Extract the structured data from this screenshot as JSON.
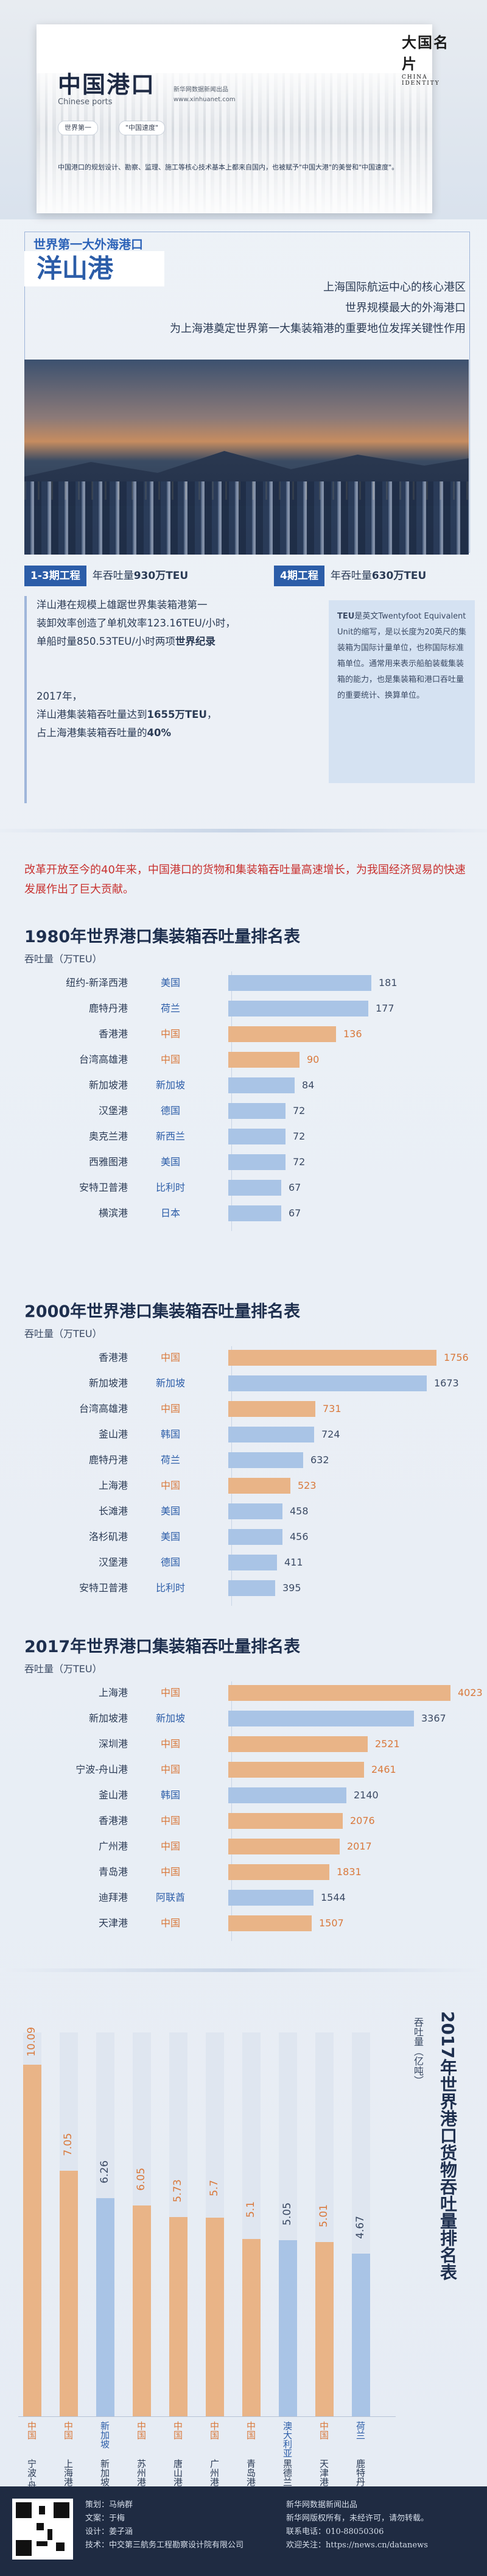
{
  "header": {
    "title": "中国港口",
    "subtitle": "Chinese ports",
    "note_line1": "新华网数据新闻出品",
    "note_line2": "www.xinhuanet.com",
    "pill_left": "世界第一",
    "pill_right": "\"中国速度\"",
    "seal_text": "大国名片",
    "seal_sub": "CHINA IDENTITY",
    "description": "中国港口的规划设计、勘察、监理、施工等核心技术基本上都来自国内，也被赋予\"中国大港\"的美誉和\"中国速度\"。"
  },
  "section1": {
    "tag": "世界第一大外海港口",
    "title": "洋山港",
    "desc_lines": [
      "上海国际航运中心的核心港区",
      "世界规模最大的外海港口",
      "为上海港奠定世界第一大集装箱港的重要地位发挥关键性作用"
    ],
    "projects": [
      {
        "tag": "1-3期工程",
        "label": "年吞吐量",
        "value": "930万TEU"
      },
      {
        "tag": "4期工程",
        "label": "年吞吐量",
        "value": "630万TEU"
      }
    ],
    "info_p1": [
      "洋山港在规模上雄踞世界集装箱港第一",
      "装卸效率创造了单机效率123.16TEU/小时，",
      "单船时量850.53TEU/小时两项"
    ],
    "info_p1_bold": "世界纪录",
    "info_p2_lines": [
      "2017年，",
      "洋山港集装箱吞吐量达到"
    ],
    "info_p2_value": "1655万TEU",
    "info_p2_tail_pre": "，",
    "info_p2_line3": "占上海港集装箱吞吐量的",
    "info_p2_pct": "40%",
    "teu_title": "TEU",
    "teu_text": "是英文Twentyfoot Equivalent Unit的缩写，是以长度为20英尺的集装箱为国际计量单位，也称国际标准箱单位。通常用来表示船舶装载集装箱的能力，也是集装箱和港口吞吐量的重要统计、换算单位。"
  },
  "intro": "改革开放至今的40年来，中国港口的货物和集装箱吞吐量高速增长，为我国经济贸易的快速发展作出了巨大贡献。",
  "chart_1980": {
    "title": "1980年世界港口集装箱吞吐量排名表",
    "unit": "吞吐量（万TEU）",
    "rows": [
      {
        "port": "纽约-新泽西港",
        "country": "美国",
        "value": 181,
        "china": false
      },
      {
        "port": "鹿特丹港",
        "country": "荷兰",
        "value": 177,
        "china": false
      },
      {
        "port": "香港港",
        "country": "中国",
        "value": 136,
        "china": true
      },
      {
        "port": "台湾高雄港",
        "country": "中国",
        "value": 90,
        "china": true
      },
      {
        "port": "新加坡港",
        "country": "新加坡",
        "value": 84,
        "china": false
      },
      {
        "port": "汉堡港",
        "country": "德国",
        "value": 72,
        "china": false
      },
      {
        "port": "奥克兰港",
        "country": "新西兰",
        "value": 72,
        "china": false
      },
      {
        "port": "西雅图港",
        "country": "美国",
        "value": 72,
        "china": false
      },
      {
        "port": "安特卫普港",
        "country": "比利时",
        "value": 67,
        "china": false
      },
      {
        "port": "横滨港",
        "country": "日本",
        "value": 67,
        "china": false
      }
    ]
  },
  "chart_2000": {
    "title": "2000年世界港口集装箱吞吐量排名表",
    "unit": "吞吐量（万TEU）",
    "rows": [
      {
        "port": "香港港",
        "country": "中国",
        "value": 1756,
        "china": true
      },
      {
        "port": "新加坡港",
        "country": "新加坡",
        "value": 1673,
        "china": false
      },
      {
        "port": "台湾高雄港",
        "country": "中国",
        "value": 731,
        "china": true
      },
      {
        "port": "釜山港",
        "country": "韩国",
        "value": 724,
        "china": false
      },
      {
        "port": "鹿特丹港",
        "country": "荷兰",
        "value": 632,
        "china": false
      },
      {
        "port": "上海港",
        "country": "中国",
        "value": 523,
        "china": true
      },
      {
        "port": "长滩港",
        "country": "美国",
        "value": 458,
        "china": false
      },
      {
        "port": "洛杉矶港",
        "country": "美国",
        "value": 456,
        "china": false
      },
      {
        "port": "汉堡港",
        "country": "德国",
        "value": 411,
        "china": false
      },
      {
        "port": "安特卫普港",
        "country": "比利时",
        "value": 395,
        "china": false
      }
    ]
  },
  "chart_2017": {
    "title": "2017年世界港口集装箱吞吐量排名表",
    "unit": "吞吐量（万TEU）",
    "rows": [
      {
        "port": "上海港",
        "country": "中国",
        "value": 4023,
        "china": true
      },
      {
        "port": "新加坡港",
        "country": "新加坡",
        "value": 3367,
        "china": false
      },
      {
        "port": "深圳港",
        "country": "中国",
        "value": 2521,
        "china": true
      },
      {
        "port": "宁波-舟山港",
        "country": "中国",
        "value": 2461,
        "china": true
      },
      {
        "port": "釜山港",
        "country": "韩国",
        "value": 2140,
        "china": false
      },
      {
        "port": "香港港",
        "country": "中国",
        "value": 2076,
        "china": true
      },
      {
        "port": "广州港",
        "country": "中国",
        "value": 2017,
        "china": true
      },
      {
        "port": "青岛港",
        "country": "中国",
        "value": 1831,
        "china": true
      },
      {
        "port": "迪拜港",
        "country": "阿联酋",
        "value": 1544,
        "china": false
      },
      {
        "port": "天津港",
        "country": "中国",
        "value": 1507,
        "china": true
      }
    ]
  },
  "chart_cargo": {
    "title": "2017年世界港口货物吞吐量排名表",
    "unit": "吞吐量（亿吨）",
    "rows": [
      {
        "port": "宁波-舟山港",
        "country": "中国",
        "value": 10.09,
        "china": true
      },
      {
        "port": "上海港",
        "country": "中国",
        "value": 7.05,
        "china": true
      },
      {
        "port": "新加坡港",
        "country": "新加坡",
        "value": 6.26,
        "china": false
      },
      {
        "port": "苏州港",
        "country": "中国",
        "value": 6.05,
        "china": true
      },
      {
        "port": "唐山港",
        "country": "中国",
        "value": 5.73,
        "china": true
      },
      {
        "port": "广州港",
        "country": "中国",
        "value": 5.7,
        "china": true
      },
      {
        "port": "青岛港",
        "country": "中国",
        "value": 5.1,
        "china": true
      },
      {
        "port": "黑德兰港",
        "country": "澳大利亚",
        "value": 5.05,
        "china": false
      },
      {
        "port": "天津港",
        "country": "中国",
        "value": 5.01,
        "china": true
      },
      {
        "port": "鹿特丹港",
        "country": "荷兰",
        "value": 4.67,
        "china": false
      }
    ]
  },
  "chart_data": [
    {
      "type": "bar",
      "title": "1980年世界港口集装箱吞吐量排名表",
      "ylabel": "吞吐量（万TEU）",
      "categories": [
        "纽约-新泽西港",
        "鹿特丹港",
        "香港港",
        "台湾高雄港",
        "新加坡港",
        "汉堡港",
        "奥克兰港",
        "西雅图港",
        "安特卫普港",
        "横滨港"
      ],
      "values": [
        181,
        177,
        136,
        90,
        84,
        72,
        72,
        72,
        67,
        67
      ]
    },
    {
      "type": "bar",
      "title": "2000年世界港口集装箱吞吐量排名表",
      "ylabel": "吞吐量（万TEU）",
      "categories": [
        "香港港",
        "新加坡港",
        "台湾高雄港",
        "釜山港",
        "鹿特丹港",
        "上海港",
        "长滩港",
        "洛杉矶港",
        "汉堡港",
        "安特卫普港"
      ],
      "values": [
        1756,
        1673,
        731,
        724,
        632,
        523,
        458,
        456,
        411,
        395
      ]
    },
    {
      "type": "bar",
      "title": "2017年世界港口集装箱吞吐量排名表",
      "ylabel": "吞吐量（万TEU）",
      "categories": [
        "上海港",
        "新加坡港",
        "深圳港",
        "宁波-舟山港",
        "釜山港",
        "香港港",
        "广州港",
        "青岛港",
        "迪拜港",
        "天津港"
      ],
      "values": [
        4023,
        3367,
        2521,
        2461,
        2140,
        2076,
        2017,
        1831,
        1544,
        1507
      ]
    },
    {
      "type": "bar",
      "title": "2017年世界港口货物吞吐量排名表",
      "ylabel": "吞吐量（亿吨）",
      "categories": [
        "宁波-舟山港",
        "上海港",
        "新加坡港",
        "苏州港",
        "唐山港",
        "广州港",
        "青岛港",
        "黑德兰港",
        "天津港",
        "鹿特丹港"
      ],
      "values": [
        10.09,
        7.05,
        6.26,
        6.05,
        5.73,
        5.7,
        5.1,
        5.05,
        5.01,
        4.67
      ]
    }
  ],
  "colors": {
    "china": "#e9b487",
    "other": "#a9c4e6",
    "china_text": "#d9793c",
    "other_text": "#2c5da8",
    "accent": "#2c5da8"
  },
  "footer": {
    "credits": [
      "策划：马纳群",
      "文案：于梅",
      "设计：姜子涵",
      "技术：中交第三航务工程勘察设计院有限公司"
    ],
    "right": [
      "新华网数据新闻出品",
      "新华网版权所有，未经许可，请勿转载。",
      "联系电话：010-88050306",
      "欢迎关注：https://news.cn/datanews"
    ]
  }
}
